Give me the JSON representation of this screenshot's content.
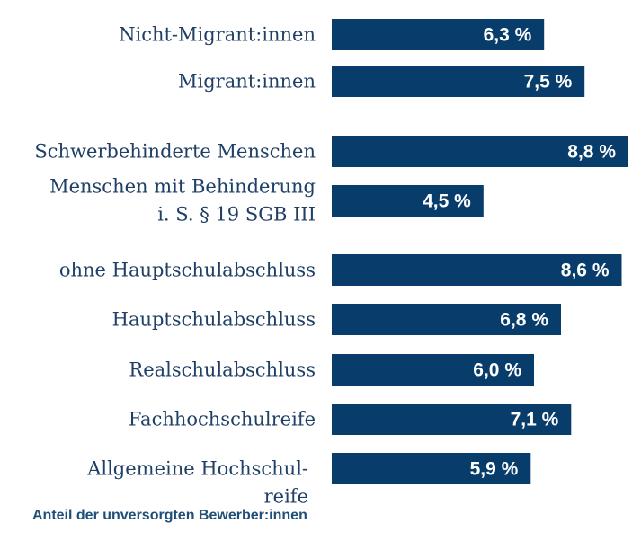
{
  "chart_data": {
    "type": "bar",
    "orientation": "horizontal",
    "categories": [
      [
        "Nicht-Migrant:innen"
      ],
      [
        "Migrant:innen"
      ],
      [
        "Schwerbehinderte Menschen"
      ],
      [
        "Menschen mit Behinderung",
        "i. S. § 19 SGB III"
      ],
      [
        "ohne Hauptschulabschluss"
      ],
      [
        "Hauptschulabschluss"
      ],
      [
        "Realschulabschluss"
      ],
      [
        "Fachhochschulreife"
      ],
      [
        "Allgemeine Hochschul-",
        "reife"
      ]
    ],
    "values": [
      6.3,
      7.5,
      8.8,
      4.5,
      8.6,
      6.8,
      6.0,
      7.1,
      5.9
    ],
    "value_labels": [
      "6,3 %",
      "7,5 %",
      "8,8 %",
      "4,5 %",
      "8,6 %",
      "6,8 %",
      "6,0 %",
      "7,1 %",
      "5,9 %"
    ],
    "groups": [
      [
        0,
        1
      ],
      [
        2,
        3
      ],
      [
        4,
        5,
        6,
        7,
        8
      ]
    ],
    "xlim": [
      0,
      8.8
    ],
    "grid": false,
    "legend": false,
    "bar_color": "#083d6b",
    "label_color": "#1f3f66",
    "value_label_color": "#ffffff"
  },
  "footnote": "Anteil der unversorgten Bewerber:innen"
}
